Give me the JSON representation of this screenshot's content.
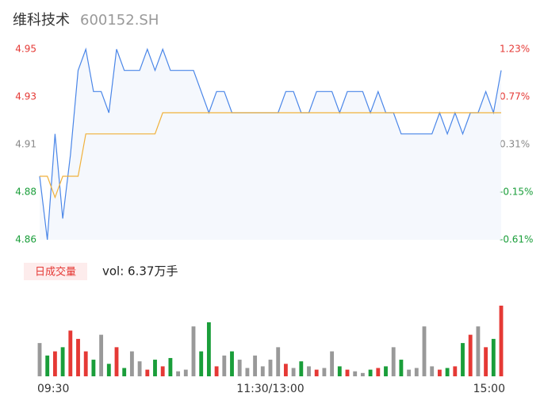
{
  "header": {
    "title": "维科技术",
    "code": "600152.SH"
  },
  "chart_data": [
    {
      "type": "line",
      "categories": [
        "09:30",
        null,
        null,
        null,
        null,
        null,
        null,
        null,
        null,
        null,
        null,
        null,
        null,
        null,
        null,
        null,
        null,
        null,
        null,
        null,
        null,
        null,
        null,
        null,
        null,
        null,
        null,
        null,
        null,
        null,
        "11:30/13:00",
        null,
        null,
        null,
        null,
        null,
        null,
        null,
        null,
        null,
        null,
        null,
        null,
        null,
        null,
        null,
        null,
        null,
        null,
        null,
        null,
        null,
        null,
        null,
        null,
        null,
        null,
        null,
        null,
        null,
        "15:00"
      ],
      "series": [
        {
          "name": "price",
          "color": "#4a86e8",
          "values": [
            4.89,
            4.86,
            4.91,
            4.87,
            4.9,
            4.94,
            4.95,
            4.93,
            4.93,
            4.92,
            4.95,
            4.94,
            4.94,
            4.94,
            4.95,
            4.94,
            4.95,
            4.94,
            4.94,
            4.94,
            4.94,
            4.93,
            4.92,
            4.93,
            4.93,
            4.92,
            4.92,
            4.92,
            4.92,
            4.92,
            4.92,
            4.92,
            4.93,
            4.93,
            4.92,
            4.92,
            4.93,
            4.93,
            4.93,
            4.92,
            4.93,
            4.93,
            4.93,
            4.92,
            4.93,
            4.92,
            4.92,
            4.91,
            4.91,
            4.91,
            4.91,
            4.91,
            4.92,
            4.91,
            4.92,
            4.91,
            4.92,
            4.92,
            4.93,
            4.92,
            4.94
          ]
        },
        {
          "name": "avg",
          "color": "#f0b13c",
          "values": [
            4.89,
            4.89,
            4.88,
            4.89,
            4.89,
            4.89,
            4.91,
            4.91,
            4.91,
            4.91,
            4.91,
            4.91,
            4.91,
            4.91,
            4.91,
            4.91,
            4.92,
            4.92,
            4.92,
            4.92,
            4.92,
            4.92,
            4.92,
            4.92,
            4.92,
            4.92,
            4.92,
            4.92,
            4.92,
            4.92,
            4.92,
            4.92,
            4.92,
            4.92,
            4.92,
            4.92,
            4.92,
            4.92,
            4.92,
            4.92,
            4.92,
            4.92,
            4.92,
            4.92,
            4.92,
            4.92,
            4.92,
            4.92,
            4.92,
            4.92,
            4.92,
            4.92,
            4.92,
            4.92,
            4.92,
            4.92,
            4.92,
            4.92,
            4.92,
            4.92,
            4.92
          ]
        }
      ],
      "ylim": [
        4.86,
        4.95
      ],
      "yticks": [
        {
          "value": 4.95,
          "label": "4.95"
        },
        {
          "value": 4.9275,
          "label": "4.93"
        },
        {
          "value": 4.905,
          "label": "4.91"
        },
        {
          "value": 4.8825,
          "label": "4.88"
        },
        {
          "value": 4.86,
          "label": "4.86"
        }
      ],
      "ytick_colors": [
        "#e53935",
        "#e53935",
        "#888888",
        "#1a9e3a",
        "#1a9e3a"
      ],
      "y2lim": [
        -0.61,
        1.23
      ],
      "y2ticks": [
        {
          "value": 1.23,
          "label": "1.23%"
        },
        {
          "value": 0.77,
          "label": "0.77%"
        },
        {
          "value": 0.31,
          "label": "0.31%"
        },
        {
          "value": -0.15,
          "label": "-0.15%"
        },
        {
          "value": -0.61,
          "label": "-0.61%"
        }
      ]
    },
    {
      "type": "volume",
      "legend": "日成交量",
      "label": "vol: 6.37万手",
      "up_color": "#e53935",
      "down_color": "#1a9e3a",
      "flat_color": "#999999",
      "values": [
        40,
        25,
        30,
        35,
        55,
        45,
        30,
        20,
        50,
        15,
        35,
        10,
        30,
        18,
        8,
        20,
        12,
        22,
        6,
        8,
        60,
        30,
        65,
        12,
        25,
        30,
        20,
        10,
        25,
        12,
        20,
        35,
        15,
        10,
        18,
        12,
        8,
        10,
        30,
        12,
        8,
        6,
        4,
        8,
        10,
        12,
        35,
        20,
        8,
        10,
        60,
        12,
        8,
        10,
        12,
        40,
        50,
        60,
        35,
        45,
        85
      ]
    }
  ]
}
